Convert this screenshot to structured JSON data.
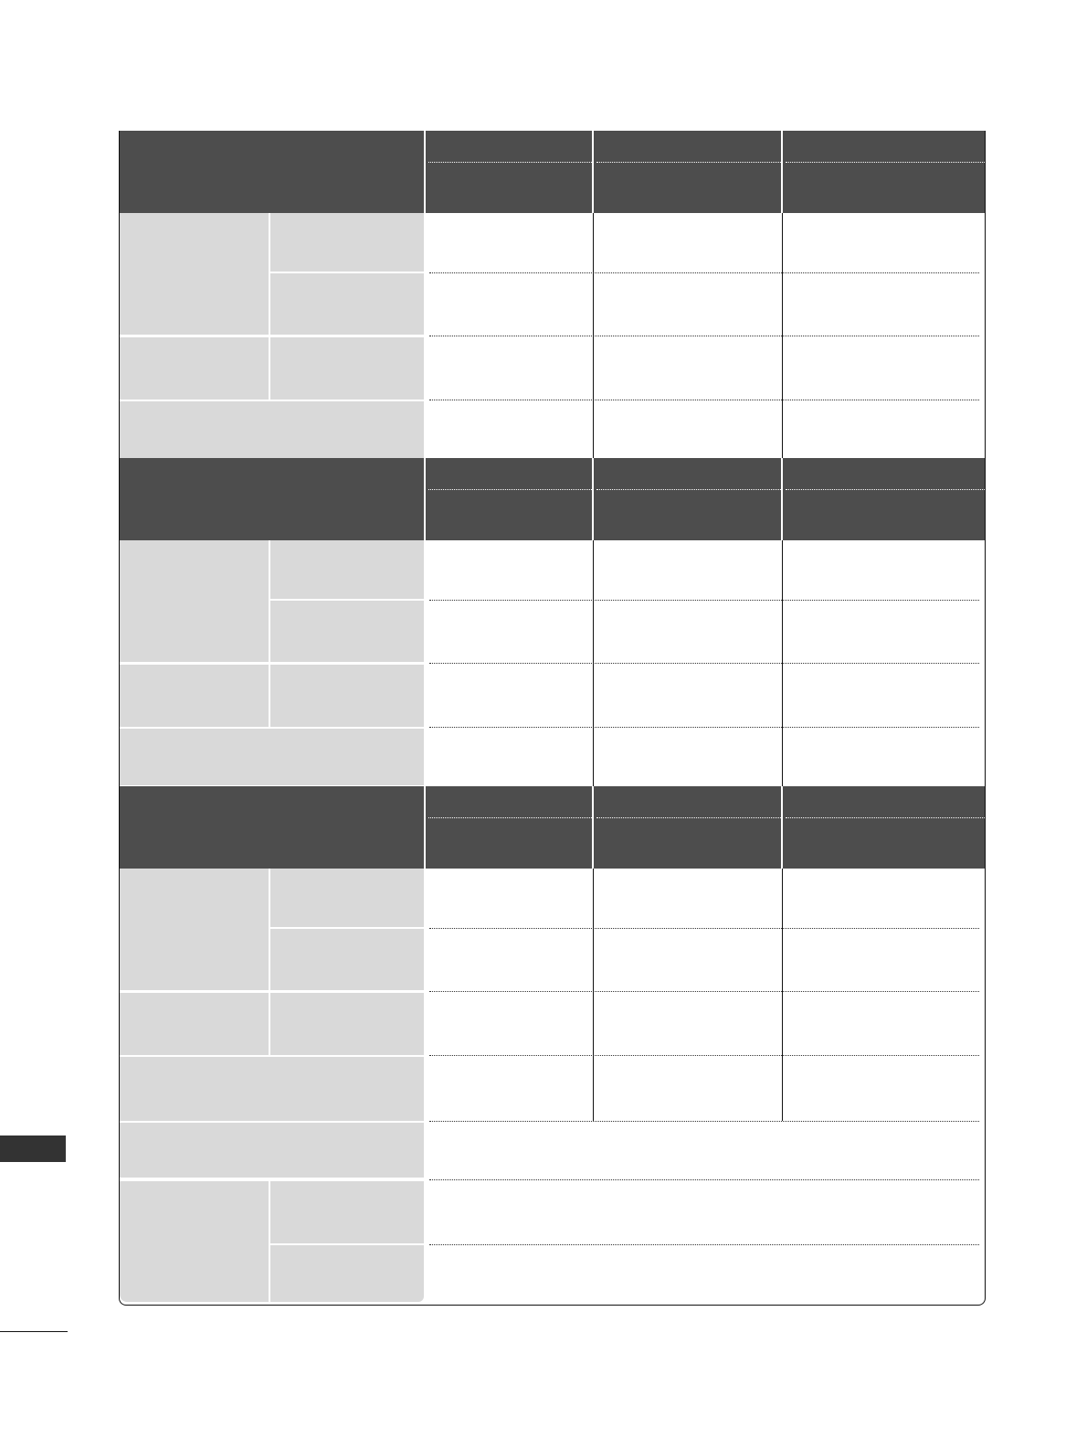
{
  "colors": {
    "header_fill": "#4d4d4d",
    "label_fill": "#d9d9d9",
    "side_tab": "#333333",
    "border": "#111111"
  },
  "table": {
    "sections": 3,
    "data_columns": 3
  }
}
